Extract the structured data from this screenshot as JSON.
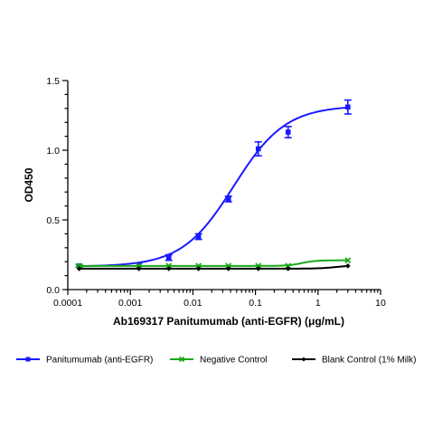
{
  "chart_data": {
    "type": "line",
    "xlabel": "Ab169317 Panitumumab (anti-EGFR) (μg/mL)",
    "ylabel": "OD450",
    "xscale": "log",
    "xlim": [
      0.0001,
      10
    ],
    "ylim": [
      0.0,
      1.5
    ],
    "x_ticks": [
      {
        "value": 0.0001,
        "label": "0.0001"
      },
      {
        "value": 0.001,
        "label": "0.001"
      },
      {
        "value": 0.01,
        "label": "0.01"
      },
      {
        "value": 0.1,
        "label": "0.1"
      },
      {
        "value": 1,
        "label": "1"
      },
      {
        "value": 10,
        "label": "10"
      }
    ],
    "y_ticks": [
      {
        "value": 0.0,
        "label": "0.0"
      },
      {
        "value": 0.5,
        "label": "0.5"
      },
      {
        "value": 1.0,
        "label": "1.0"
      },
      {
        "value": 1.5,
        "label": "1.5"
      }
    ],
    "grid": false,
    "legend_position": "bottom",
    "series": [
      {
        "name": "Panitumumab (anti-EGFR)",
        "color": "#1a1aff",
        "marker": "square",
        "x": [
          0.000152,
          0.00137,
          0.00412,
          0.0123,
          0.037,
          0.111,
          0.333,
          3.0
        ],
        "y": [
          0.17,
          0.18,
          0.23,
          0.38,
          0.65,
          1.01,
          1.13,
          1.31
        ],
        "err": [
          0.01,
          0.01,
          0.02,
          0.02,
          0.02,
          0.05,
          0.04,
          0.05
        ],
        "fit": {
          "bottom": 0.165,
          "top": 1.32,
          "ec50": 0.045,
          "hill": 1.05
        }
      },
      {
        "name": "Negative Control",
        "color": "#1aa81a",
        "marker": "x",
        "x": [
          0.000152,
          0.00137,
          0.00412,
          0.0123,
          0.037,
          0.111,
          0.333,
          3.0
        ],
        "y": [
          0.17,
          0.17,
          0.17,
          0.17,
          0.17,
          0.17,
          0.17,
          0.21
        ],
        "err": [
          0.01,
          0.0,
          0.0,
          0.0,
          0.0,
          0.0,
          0.0,
          0.0
        ],
        "fit": {
          "bottom": 0.17,
          "top": 0.21,
          "ec50": 0.55,
          "hill": 4.0
        }
      },
      {
        "name": "Blank Control (1% Milk)",
        "color": "#000000",
        "marker": "diamond",
        "x": [
          0.000152,
          0.00137,
          0.00412,
          0.0123,
          0.037,
          0.111,
          0.333,
          3.0
        ],
        "y": [
          0.15,
          0.15,
          0.15,
          0.15,
          0.15,
          0.15,
          0.15,
          0.17
        ],
        "err": [
          0.0,
          0.0,
          0.0,
          0.0,
          0.0,
          0.0,
          0.0,
          0.0
        ],
        "fit": {
          "bottom": 0.15,
          "top": 0.175,
          "ec50": 2.0,
          "hill": 3.0
        }
      }
    ]
  }
}
